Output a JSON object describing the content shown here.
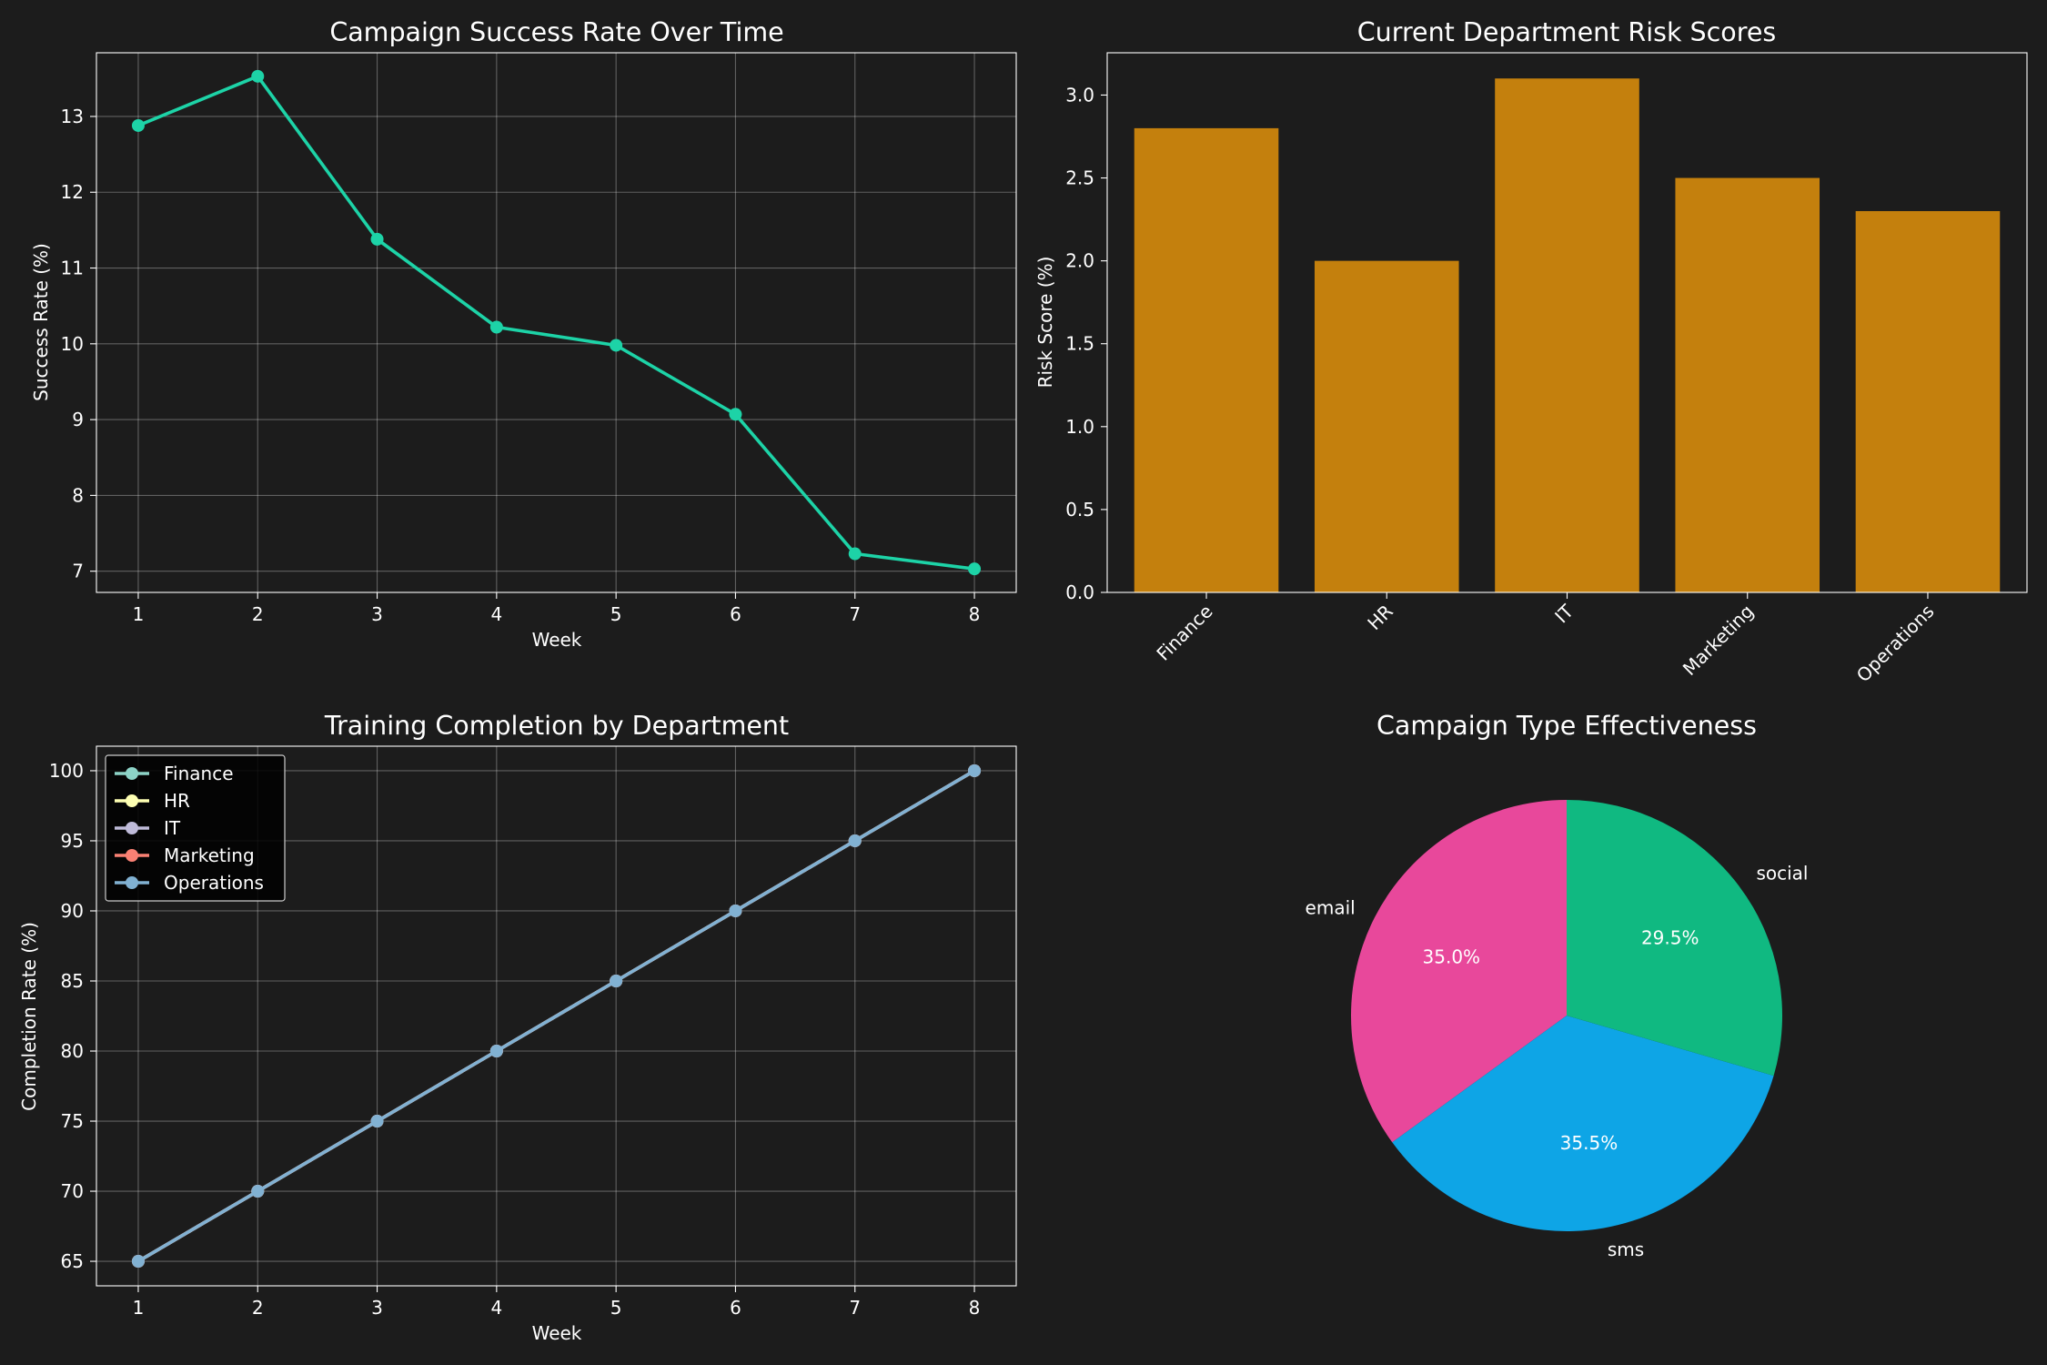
{
  "figure": {
    "background": "#1c1c1c",
    "axes_color": "#ffffff"
  },
  "chart_data": [
    {
      "type": "line",
      "title": "Campaign Success Rate Over Time",
      "xlabel": "Week",
      "ylabel": "Success Rate (%)",
      "x": [
        1,
        2,
        3,
        4,
        5,
        6,
        7,
        8
      ],
      "xticks": [
        "1",
        "2",
        "3",
        "4",
        "5",
        "6",
        "7",
        "8"
      ],
      "yticks": [
        "7",
        "8",
        "9",
        "10",
        "11",
        "12",
        "13"
      ],
      "xlim": [
        0.65,
        8.35
      ],
      "ylim": [
        6.72,
        13.84
      ],
      "grid": true,
      "series": [
        {
          "values": [
            12.88,
            13.53,
            11.38,
            10.22,
            9.98,
            9.07,
            7.23,
            7.03
          ],
          "color": "#1dd3a7"
        }
      ]
    },
    {
      "type": "bar",
      "title": "Current Department Risk Scores",
      "xlabel": "",
      "ylabel": "Risk Score (%)",
      "categories": [
        "Finance",
        "HR",
        "IT",
        "Marketing",
        "Operations"
      ],
      "values": [
        2.8,
        2.0,
        3.1,
        2.5,
        2.3
      ],
      "yticks": [
        "0.0",
        "0.5",
        "1.0",
        "1.5",
        "2.0",
        "2.5",
        "3.0"
      ],
      "ylim": [
        0,
        3.255
      ],
      "grid": false,
      "color": "#c4800d"
    },
    {
      "type": "line",
      "title": "Training Completion by Department",
      "xlabel": "Week",
      "ylabel": "Completion Rate (%)",
      "x": [
        1,
        2,
        3,
        4,
        5,
        6,
        7,
        8
      ],
      "xticks": [
        "1",
        "2",
        "3",
        "4",
        "5",
        "6",
        "7",
        "8"
      ],
      "yticks": [
        "65",
        "70",
        "75",
        "80",
        "85",
        "90",
        "95",
        "100"
      ],
      "xlim": [
        0.65,
        8.35
      ],
      "ylim": [
        63.25,
        101.75
      ],
      "grid": true,
      "legend": "top-left",
      "series": [
        {
          "name": "Finance",
          "values": [
            65,
            70,
            75,
            80,
            85,
            90,
            95,
            100
          ],
          "color": "#8dd3c7"
        },
        {
          "name": "HR",
          "values": [
            65,
            70,
            75,
            80,
            85,
            90,
            95,
            100
          ],
          "color": "#feffb3"
        },
        {
          "name": "IT",
          "values": [
            65,
            70,
            75,
            80,
            85,
            90,
            95,
            100
          ],
          "color": "#bfbbd9"
        },
        {
          "name": "Marketing",
          "values": [
            65,
            70,
            75,
            80,
            85,
            90,
            95,
            100
          ],
          "color": "#fa8174"
        },
        {
          "name": "Operations",
          "values": [
            65,
            70,
            75,
            80,
            85,
            90,
            95,
            100
          ],
          "color": "#81b1d2"
        }
      ]
    },
    {
      "type": "pie",
      "title": "Campaign Type Effectiveness",
      "slices": [
        {
          "label": "email",
          "value": 35.0,
          "pct_label": "35.0%",
          "color": "#e8489b"
        },
        {
          "label": "sms",
          "value": 35.5,
          "pct_label": "35.5%",
          "color": "#0ea5e6"
        },
        {
          "label": "social",
          "value": 29.5,
          "pct_label": "29.5%",
          "color": "#10b981"
        }
      ]
    }
  ]
}
